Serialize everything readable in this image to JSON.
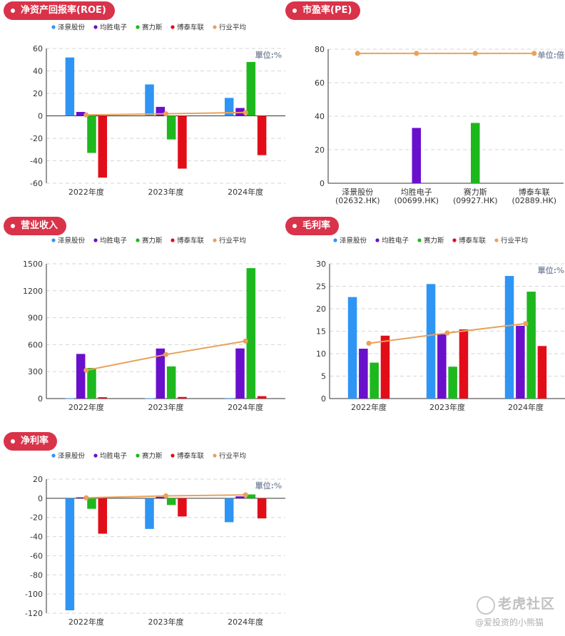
{
  "colors": {
    "泽景股份": "#2f95f4",
    "均胜电子": "#6a0fcc",
    "赛力斯": "#1db81d",
    "博泰车联": "#e10e19",
    "行业平均": "#e8a25a"
  },
  "legend": [
    "泽景股份",
    "均胜电子",
    "赛力斯",
    "博泰车联",
    "行业平均"
  ],
  "watermark": {
    "name": "老虎社区",
    "user": "@爱投资的小熊猫"
  },
  "chart_data": [
    {
      "id": "roe",
      "type": "bar",
      "title": "净资产回报率(ROE)",
      "unit": "單位:%",
      "categories": [
        "2022年度",
        "2023年度",
        "2024年度"
      ],
      "series": [
        {
          "name": "泽景股份",
          "values": [
            52,
            28,
            16
          ]
        },
        {
          "name": "均胜电子",
          "values": [
            3.5,
            8,
            7
          ]
        },
        {
          "name": "赛力斯",
          "values": [
            -33,
            -21,
            48
          ]
        },
        {
          "name": "博泰车联",
          "values": [
            -55,
            -47,
            -35
          ]
        }
      ],
      "line": {
        "name": "行业平均",
        "values": [
          0.8,
          1.8,
          3
        ]
      },
      "ylim": [
        -60,
        60
      ],
      "yticks": [
        -60,
        -40,
        -20,
        0,
        20,
        40,
        60
      ],
      "legend": true
    },
    {
      "id": "pe",
      "type": "bar",
      "title": "市盈率(PE)",
      "unit": "单位:倍",
      "categories": [
        "泽景股份\n(02632.HK)",
        "均胜电子\n(00699.HK)",
        "赛力斯\n(09927.HK)",
        "博泰车联\n(02889.HK)"
      ],
      "values": [
        null,
        33,
        36,
        null
      ],
      "bar_series": [
        null,
        "均胜电子",
        "赛力斯",
        null
      ],
      "line": {
        "name": "行业平均",
        "values": [
          77.5,
          77.5,
          77.5,
          77.5
        ]
      },
      "ylim": [
        0,
        80
      ],
      "yticks": [
        0,
        20,
        40,
        60,
        80
      ],
      "legend": false
    },
    {
      "id": "revenue",
      "type": "bar",
      "title": "营业收入",
      "unit": "",
      "categories": [
        "2022年度",
        "2023年度",
        "2024年度"
      ],
      "series": [
        {
          "name": "泽景股份",
          "values": [
            3,
            4,
            5
          ]
        },
        {
          "name": "均胜电子",
          "values": [
            497,
            557,
            558
          ]
        },
        {
          "name": "赛力斯",
          "values": [
            341,
            358,
            1452
          ]
        },
        {
          "name": "博泰车联",
          "values": [
            15,
            18,
            27
          ]
        }
      ],
      "line": {
        "name": "行业平均",
        "values": [
          315,
          490,
          640
        ]
      },
      "ylim": [
        0,
        1500
      ],
      "yticks": [
        0,
        300,
        600,
        900,
        1200,
        1500
      ],
      "legend": true
    },
    {
      "id": "gross",
      "type": "bar",
      "title": "毛利率",
      "unit": "單位:%",
      "categories": [
        "2022年度",
        "2023年度",
        "2024年度"
      ],
      "series": [
        {
          "name": "泽景股份",
          "values": [
            22.6,
            25.5,
            27.3
          ]
        },
        {
          "name": "均胜电子",
          "values": [
            11.1,
            14.3,
            16.2
          ]
        },
        {
          "name": "赛力斯",
          "values": [
            8,
            7.1,
            23.8
          ]
        },
        {
          "name": "博泰车联",
          "values": [
            14,
            15.4,
            11.7
          ]
        }
      ],
      "line": {
        "name": "行业平均",
        "values": [
          12.3,
          14.6,
          16.7
        ]
      },
      "ylim": [
        0,
        30
      ],
      "yticks": [
        0,
        5,
        10,
        15,
        20,
        25,
        30
      ],
      "legend": true
    },
    {
      "id": "net",
      "type": "bar",
      "title": "净利率",
      "unit": "單位:%",
      "categories": [
        "2022年度",
        "2023年度",
        "2024年度"
      ],
      "series": [
        {
          "name": "泽景股份",
          "values": [
            -117,
            -32,
            -25
          ]
        },
        {
          "name": "均胜电子",
          "values": [
            1,
            1.5,
            2
          ]
        },
        {
          "name": "赛力斯",
          "values": [
            -11,
            -7,
            4
          ]
        },
        {
          "name": "博泰车联",
          "values": [
            -37,
            -19,
            -21
          ]
        }
      ],
      "line": {
        "name": "行业平均",
        "values": [
          0.5,
          2.5,
          3.5
        ]
      },
      "ylim": [
        -120,
        20
      ],
      "yticks": [
        -120,
        -100,
        -80,
        -60,
        -40,
        -20,
        0,
        20
      ],
      "legend": true
    }
  ]
}
